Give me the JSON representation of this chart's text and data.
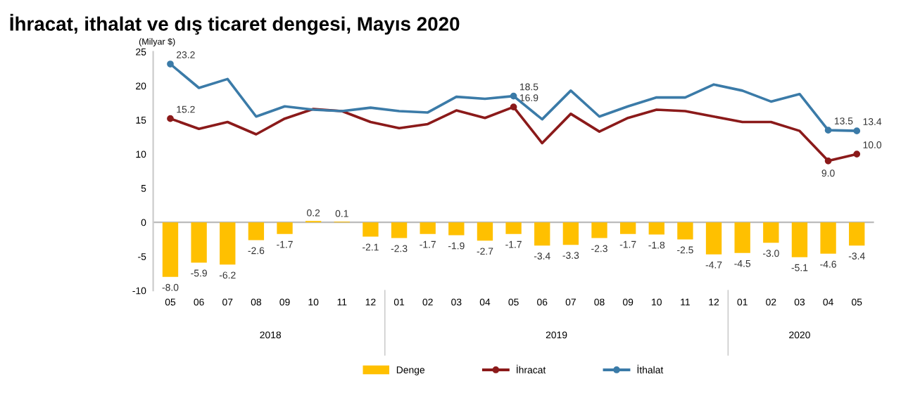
{
  "chart_data": {
    "type": "bar",
    "title": "İhracat, ithalat ve dış ticaret dengesi, Mayıs 2020",
    "ylabel": "(Milyar $)",
    "categories": [
      "05",
      "06",
      "07",
      "08",
      "09",
      "10",
      "11",
      "12",
      "01",
      "02",
      "03",
      "04",
      "05",
      "06",
      "07",
      "08",
      "09",
      "10",
      "11",
      "12",
      "01",
      "02",
      "03",
      "04",
      "05"
    ],
    "annotations": [
      "2018",
      "2019",
      "2020"
    ],
    "ylim": [
      -10,
      25
    ],
    "yticks": [
      -10,
      -5,
      0,
      5,
      10,
      15,
      20,
      25
    ],
    "grid": false,
    "legend": "bottom",
    "ref_lines": [
      {
        "axis": "y",
        "value": 0,
        "color": "#bbbbbb"
      }
    ],
    "series": [
      {
        "name": "Denge",
        "color": "#ffc000",
        "values": [
          -8.0,
          -5.9,
          -6.2,
          -2.6,
          -1.7,
          0.2,
          0.1,
          -2.1,
          -2.3,
          -1.7,
          -1.9,
          -2.7,
          -1.7,
          -3.4,
          -3.3,
          -2.3,
          -1.7,
          -1.8,
          -2.5,
          -4.7,
          -4.5,
          -3.0,
          -5.1,
          -4.6,
          -3.4
        ],
        "value_labels": [
          "-8.0",
          "-5.9",
          "-6.2",
          "-2.6",
          "-1.7",
          "0.2",
          "0.1",
          "-2.1",
          "-2.3",
          "-1.7",
          "-1.9",
          "-2.7",
          "-1.7",
          "-3.4",
          "-3.3",
          "-2.3",
          "-1.7",
          "-1.8",
          "-2.5",
          "-4.7",
          "-4.5",
          "-3.0",
          "-5.1",
          "-4.6",
          "-3.4"
        ]
      },
      {
        "name": "İhracat",
        "type": "line",
        "color": "#8b1a1a",
        "values": [
          15.2,
          13.7,
          14.7,
          12.9,
          15.2,
          16.6,
          16.3,
          14.7,
          13.8,
          14.4,
          16.4,
          15.3,
          16.9,
          11.6,
          15.9,
          13.3,
          15.3,
          16.5,
          16.3,
          15.5,
          14.7,
          14.7,
          13.4,
          9.0,
          10.0
        ],
        "value_labels": [
          "15.2",
          null,
          null,
          null,
          null,
          null,
          null,
          null,
          null,
          null,
          null,
          null,
          "16.9",
          null,
          null,
          null,
          null,
          null,
          null,
          null,
          null,
          null,
          null,
          "9.0",
          "10.0"
        ]
      },
      {
        "name": "İthalat",
        "type": "line",
        "color": "#3b7ba8",
        "values": [
          23.2,
          19.7,
          21.0,
          15.5,
          17.0,
          16.5,
          16.3,
          16.8,
          16.3,
          16.1,
          18.4,
          18.1,
          18.5,
          15.1,
          19.3,
          15.5,
          17.0,
          18.3,
          18.3,
          20.2,
          19.3,
          17.7,
          18.8,
          13.5,
          13.4
        ],
        "value_labels": [
          "23.2",
          null,
          null,
          null,
          null,
          null,
          null,
          null,
          null,
          null,
          null,
          null,
          "18.5",
          null,
          null,
          null,
          null,
          null,
          null,
          null,
          null,
          null,
          null,
          "13.5",
          "13.4"
        ]
      }
    ]
  }
}
